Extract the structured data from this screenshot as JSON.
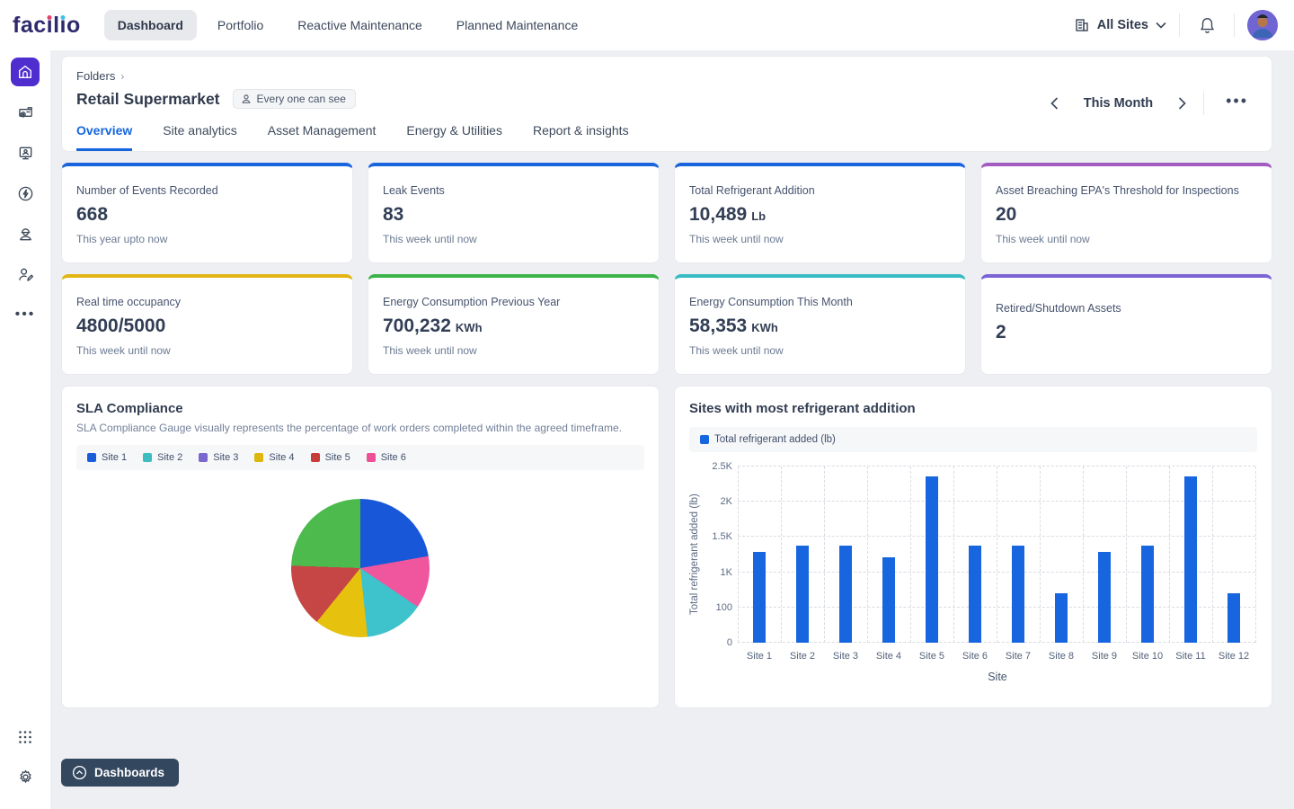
{
  "brand": {
    "name": "facilio",
    "wordmark_color": "#2e2a6d",
    "dot1_color": "#e5426a",
    "dot2_color": "#3bc1e8"
  },
  "navbar": {
    "items": [
      "Dashboard",
      "Portfolio",
      "Reactive Maintenance",
      "Planned Maintenance"
    ],
    "active_index": 0,
    "site_selector": "All Sites",
    "icons": [
      "building-icon",
      "chevron-down-icon",
      "bell-icon",
      "avatar"
    ]
  },
  "sidebar": {
    "items": [
      "home",
      "assets",
      "visitor-management",
      "energy",
      "workforce",
      "vendors",
      "more"
    ],
    "active": "home",
    "bottom_items": [
      "apps-grid",
      "settings"
    ]
  },
  "header": {
    "breadcrumb": "Folders",
    "title": "Retail Supermarket",
    "badge": "Every one can see",
    "period": "This Month",
    "more": "...",
    "tabs": [
      "Overview",
      "Site analytics",
      "Asset Management",
      "Energy & Utilities",
      "Report & insights"
    ],
    "active_tab_index": 0,
    "active_tab_color": "#1566dd"
  },
  "kpi_cards": [
    {
      "title": "Number of Events Recorded",
      "value": "668",
      "unit": "",
      "subtitle": "This year upto now",
      "accent": "#1a64dd"
    },
    {
      "title": "Leak Events",
      "value": "83",
      "unit": "",
      "subtitle": "This week until now",
      "accent": "#1a64dd"
    },
    {
      "title": "Total Refrigerant Addition",
      "value": "10,489",
      "unit": "Lb",
      "subtitle": "This week until now",
      "accent": "#1a64dd"
    },
    {
      "title": "Asset Breaching EPA's Threshold for Inspections",
      "value": "20",
      "unit": "",
      "subtitle": "This week until now",
      "accent": "#a35cc0"
    },
    {
      "title": "Real time occupancy",
      "value": "4800/5000",
      "unit": "",
      "subtitle": "This week until now",
      "accent": "#e2b514"
    },
    {
      "title": "Energy Consumption Previous Year",
      "value": "700,232",
      "unit": "KWh",
      "subtitle": "This week until now",
      "accent": "#3cb44a"
    },
    {
      "title": "Energy Consumption This Month",
      "value": "58,353",
      "unit": "KWh",
      "subtitle": "This week until now",
      "accent": "#36bcc2"
    },
    {
      "title": "Retired/Shutdown Assets",
      "value": "2",
      "unit": "",
      "subtitle": "",
      "accent": "#7a64d6"
    }
  ],
  "sla": {
    "title": "SLA Compliance",
    "description": "SLA Compliance Gauge visually represents the percentage of work orders completed within the agreed timeframe.",
    "legend": [
      {
        "label": "Site 1",
        "color": "#1a5dd8"
      },
      {
        "label": "Site 2",
        "color": "#3dbdbd"
      },
      {
        "label": "Site 3",
        "color": "#7b68cf"
      },
      {
        "label": "Site 4",
        "color": "#ddb70d"
      },
      {
        "label": "Site 5",
        "color": "#c73b38"
      },
      {
        "label": "Site 6",
        "color": "#ee5097"
      }
    ]
  },
  "refrigerant": {
    "title": "Sites with most refrigerant addition",
    "legend_label": "Total refrigerant added (lb)",
    "legend_color": "#1766df"
  },
  "footer": {
    "dashboards_button": "Dashboards"
  },
  "chart_data": [
    {
      "type": "pie",
      "title": "SLA Compliance",
      "legend_position": "top",
      "legend_entries": [
        "Site 1",
        "Site 2",
        "Site 3",
        "Site 4",
        "Site 5",
        "Site 6"
      ],
      "segments_clockwise_from_top": [
        {
          "color": "#1857d8",
          "degrees": 80,
          "percent": 22.2
        },
        {
          "color": "#f0569d",
          "degrees": 44,
          "percent": 12.2
        },
        {
          "color": "#3ec2cc",
          "degrees": 50,
          "percent": 13.9
        },
        {
          "color": "#e6c10e",
          "degrees": 45,
          "percent": 12.5
        },
        {
          "color": "#c64545",
          "degrees": 53,
          "percent": 14.7
        },
        {
          "color": "#4cba4c",
          "degrees": 88,
          "percent": 24.5
        }
      ]
    },
    {
      "type": "bar",
      "title": "Sites with most refrigerant addition",
      "series": [
        {
          "name": "Total refrigerant added (lb)",
          "values": [
            1290,
            1380,
            1380,
            1210,
            2355,
            1380,
            1380,
            700,
            1290,
            1380,
            2355,
            700
          ]
        }
      ],
      "categories": [
        "Site 1",
        "Site 2",
        "Site 3",
        "Site 4",
        "Site 5",
        "Site 6",
        "Site 7",
        "Site 8",
        "Site 9",
        "Site 10",
        "Site 11",
        "Site 12"
      ],
      "xlabel": "Site",
      "ylabel": "Total refrigerant added (lb)",
      "ylim": [
        0,
        2500
      ],
      "ytick_labels_bottom_to_top": [
        "0",
        "100",
        "1K",
        "1.5K",
        "2K",
        "2.5K"
      ],
      "bar_color": "#1766df",
      "grid": "dashed",
      "legend_position": "top"
    }
  ]
}
